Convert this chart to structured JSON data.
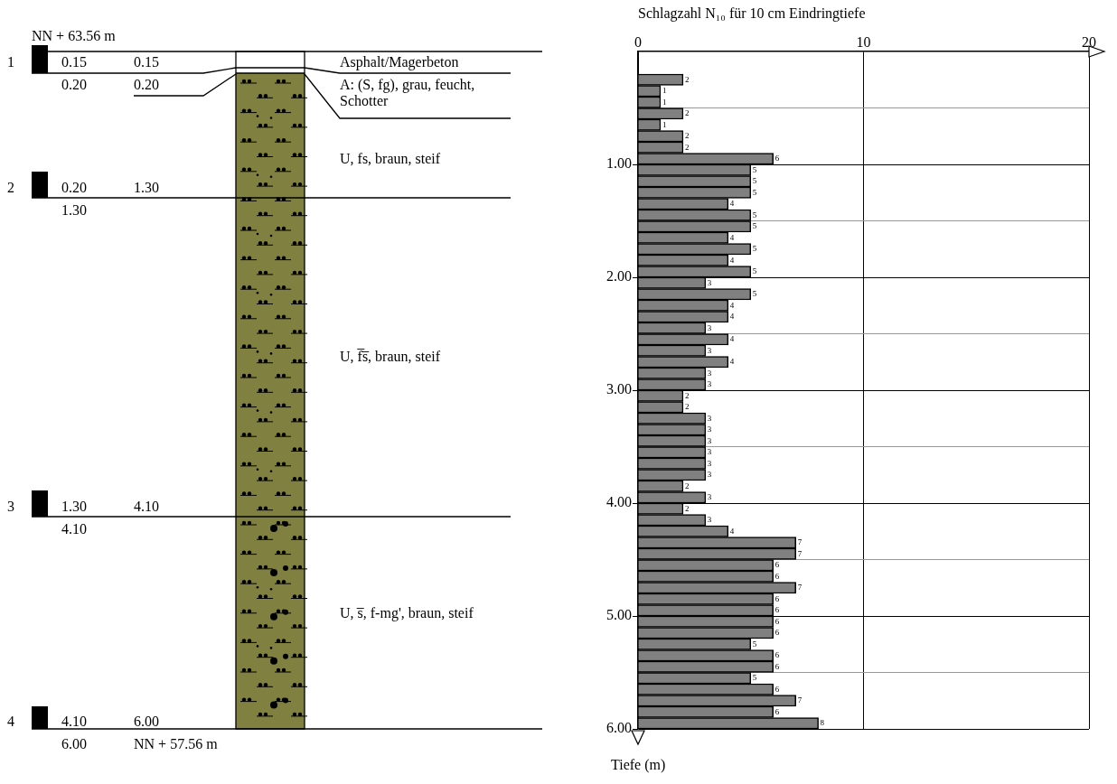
{
  "chart_data": [
    {
      "type": "other",
      "annotations": [
        "NN + 63.56 m",
        "1",
        "0.15",
        "0.15",
        "0.20",
        "0.20",
        "Asphalt/Magerbeton",
        "A: (S, fg), grau, feucht, Schotter",
        "U, fs, braun, steif",
        "2",
        "0.20",
        "1.30",
        "1.30",
        "U, f̅s̅, braun, steif",
        "3",
        "1.30",
        "4.10",
        "4.10",
        "U, s̅, f-mg', braun, steif",
        "4",
        "4.10",
        "6.00",
        "6.00",
        "NN + 57.56 m"
      ]
    },
    {
      "type": "bar",
      "orientation": "horizontal",
      "xlabel": "Schlagzahl N₁₀ für 10 cm Eindringtiefe",
      "ylabel": "Tiefe (m)",
      "x": [
        0.25,
        0.35,
        0.45,
        0.55,
        0.65,
        0.75,
        0.85,
        0.95,
        1.05,
        1.15,
        1.25,
        1.35,
        1.45,
        1.55,
        1.65,
        1.75,
        1.85,
        1.95,
        2.05,
        2.15,
        2.25,
        2.35,
        2.45,
        2.55,
        2.65,
        2.75,
        2.85,
        2.95,
        3.05,
        3.15,
        3.25,
        3.35,
        3.45,
        3.55,
        3.65,
        3.75,
        3.85,
        3.95,
        4.05,
        4.15,
        4.25,
        4.35,
        4.45,
        4.55,
        4.65,
        4.75,
        4.85,
        4.95,
        5.05,
        5.15,
        5.25,
        5.35,
        5.45,
        5.55,
        5.65,
        5.75,
        5.85,
        5.95
      ],
      "values": [
        2,
        1,
        1,
        2,
        1,
        2,
        2,
        6,
        5,
        5,
        5,
        4,
        5,
        5,
        4,
        5,
        4,
        5,
        3,
        5,
        4,
        4,
        3,
        4,
        3,
        4,
        3,
        3,
        2,
        2,
        3,
        3,
        3,
        3,
        3,
        3,
        2,
        3,
        2,
        3,
        4,
        7,
        7,
        6,
        6,
        7,
        6,
        6,
        6,
        6,
        5,
        6,
        6,
        5,
        6,
        7,
        6,
        8
      ],
      "color": "#808080",
      "data_labels": true,
      "xlim": [
        0,
        20
      ],
      "xticks": [
        0,
        10,
        20
      ],
      "ylim": [
        6,
        0
      ],
      "yticks": [
        {
          "value": 0.5,
          "label": null
        },
        {
          "value": 1,
          "label": "1.00"
        },
        {
          "value": 1.5,
          "label": null
        },
        {
          "value": 2,
          "label": "2.00"
        },
        {
          "value": 2.5,
          "label": null
        },
        {
          "value": 3,
          "label": "3.00"
        },
        {
          "value": 3.5,
          "label": null
        },
        {
          "value": 4,
          "label": "4.00"
        },
        {
          "value": 4.5,
          "label": null
        },
        {
          "value": 5,
          "label": "5.00"
        },
        {
          "value": 5.5,
          "label": null
        },
        {
          "value": 6,
          "label": "6.00"
        }
      ],
      "grid": true
    }
  ]
}
